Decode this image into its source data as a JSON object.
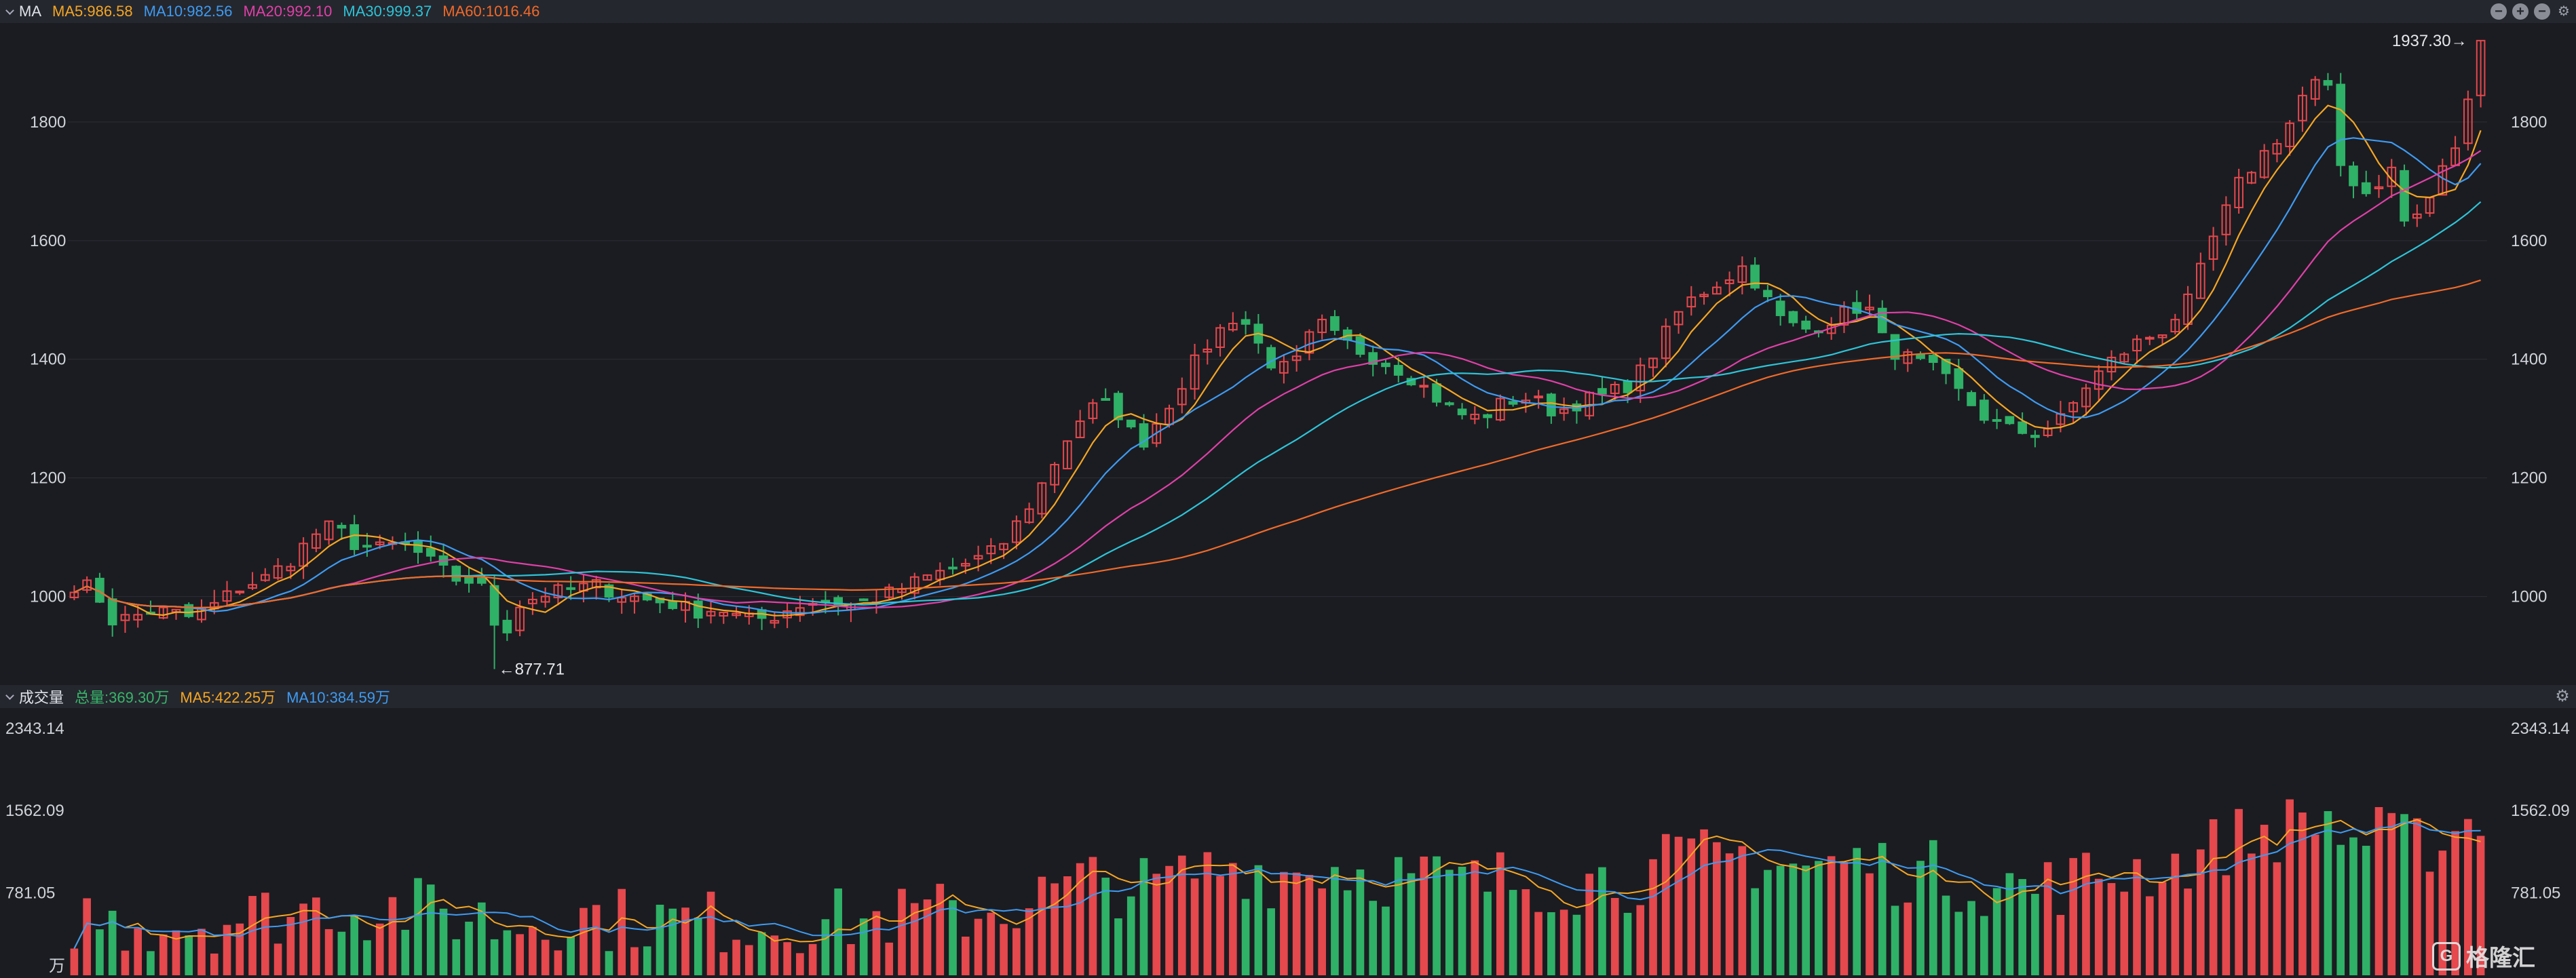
{
  "header": {
    "name": "MA",
    "items": [
      {
        "label": "MA5:986.58",
        "color": "#f5a623"
      },
      {
        "label": "MA10:982.56",
        "color": "#3e9bf2"
      },
      {
        "label": "MA20:992.10",
        "color": "#e040a8"
      },
      {
        "label": "MA30:999.37",
        "color": "#2ec4d8"
      },
      {
        "label": "MA60:1016.46",
        "color": "#f06a2a"
      }
    ],
    "controls": [
      "minus-icon",
      "plus-icon",
      "collapse-icon",
      "gear-icon"
    ]
  },
  "volume_header": {
    "name": "成交量",
    "items": [
      {
        "label": "总量:369.30万",
        "color": "#38b56b"
      },
      {
        "label": "MA5:422.25万",
        "color": "#f5a623"
      },
      {
        "label": "MA10:384.59万",
        "color": "#3e9bf2"
      }
    ]
  },
  "watermark": {
    "text": "格隆汇",
    "mark": "G"
  },
  "colors": {
    "up": "#e5484d",
    "down": "#2fb167",
    "background": "#1b1c21",
    "grid": "#2c2e36"
  },
  "chart_data": [
    {
      "type": "candlestick",
      "y_ticks": [
        "1800",
        "1600",
        "1400",
        "1200",
        "1000"
      ],
      "y_tick_values": [
        1800,
        1600,
        1400,
        1200,
        1000
      ],
      "ylim": [
        860,
        1960
      ],
      "high_marker": {
        "label": "1937.30→",
        "value": 1937.3
      },
      "low_marker": {
        "label": "←877.71",
        "value": 877.71
      },
      "candles_count": 190,
      "anchors": [
        [
          0,
          1020
        ],
        [
          3,
          1015
        ],
        [
          6,
          960
        ],
        [
          9,
          965
        ],
        [
          12,
          975
        ],
        [
          15,
          975
        ],
        [
          18,
          965
        ],
        [
          22,
          985
        ],
        [
          26,
          1015
        ],
        [
          30,
          1030
        ],
        [
          34,
          1060
        ],
        [
          38,
          1105
        ],
        [
          41,
          1120
        ],
        [
          44,
          1090
        ],
        [
          48,
          1080
        ],
        [
          52,
          1090
        ],
        [
          56,
          1060
        ],
        [
          60,
          1030
        ],
        [
          64,
          1025
        ],
        [
          66,
          960
        ],
        [
          68,
          940
        ],
        [
          70,
          985
        ],
        [
          74,
          1005
        ],
        [
          78,
          1010
        ],
        [
          82,
          1020
        ],
        [
          86,
          1005
        ],
        [
          90,
          995
        ],
        [
          94,
          990
        ],
        [
          98,
          975
        ],
        [
          102,
          980
        ],
        [
          106,
          960
        ],
        [
          110,
          965
        ],
        [
          114,
          985
        ],
        [
          118,
          995
        ],
        [
          122,
          985
        ],
        [
          126,
          995
        ],
        [
          130,
          1010
        ],
        [
          134,
          1030
        ],
        [
          138,
          1045
        ],
        [
          142,
          1060
        ],
        [
          146,
          1080
        ],
        [
          150,
          1140
        ],
        [
          154,
          1210
        ],
        [
          158,
          1290
        ],
        [
          162,
          1330
        ],
        [
          166,
          1300
        ],
        [
          168,
          1250
        ],
        [
          172,
          1310
        ],
        [
          176,
          1380
        ],
        [
          180,
          1440
        ],
        [
          184,
          1480
        ],
        [
          186,
          1440
        ],
        [
          190,
          1380
        ],
        [
          194,
          1400
        ],
        [
          196,
          1470
        ],
        [
          198,
          1445
        ],
        [
          202,
          1420
        ],
        [
          206,
          1400
        ],
        [
          210,
          1380
        ],
        [
          214,
          1345
        ],
        [
          218,
          1310
        ],
        [
          222,
          1300
        ],
        [
          226,
          1330
        ],
        [
          230,
          1335
        ],
        [
          234,
          1310
        ],
        [
          238,
          1330
        ],
        [
          242,
          1340
        ],
        [
          246,
          1360
        ],
        [
          250,
          1420
        ],
        [
          254,
          1490
        ],
        [
          258,
          1520
        ],
        [
          262,
          1545
        ],
        [
          264,
          1560
        ],
        [
          266,
          1520
        ],
        [
          270,
          1460
        ],
        [
          274,
          1450
        ],
        [
          278,
          1470
        ],
        [
          282,
          1490
        ],
        [
          284,
          1480
        ],
        [
          286,
          1420
        ],
        [
          290,
          1400
        ],
        [
          294,
          1380
        ],
        [
          298,
          1340
        ],
        [
          302,
          1300
        ],
        [
          306,
          1280
        ],
        [
          310,
          1275
        ],
        [
          314,
          1300
        ],
        [
          318,
          1360
        ],
        [
          322,
          1400
        ],
        [
          326,
          1430
        ],
        [
          330,
          1450
        ],
        [
          334,
          1500
        ],
        [
          338,
          1610
        ],
        [
          342,
          1700
        ],
        [
          346,
          1750
        ],
        [
          350,
          1800
        ],
        [
          353,
          1870
        ],
        [
          356,
          1850
        ],
        [
          358,
          1720
        ],
        [
          362,
          1680
        ],
        [
          366,
          1720
        ],
        [
          368,
          1630
        ],
        [
          371,
          1650
        ],
        [
          374,
          1720
        ],
        [
          377,
          1780
        ],
        [
          380,
          1937
        ]
      ]
    },
    {
      "type": "bar",
      "name": "成交量",
      "y_ticks": [
        "2343.14",
        "1562.09",
        "781.05"
      ],
      "y_tick_values": [
        2343.14,
        1562.09,
        781.05
      ],
      "ylim": [
        0,
        2343.14
      ],
      "unit": "万"
    }
  ]
}
